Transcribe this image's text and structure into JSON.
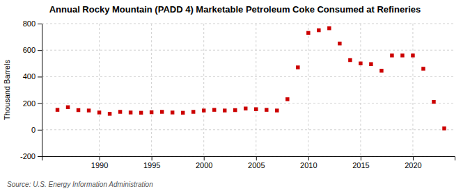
{
  "chart_data": {
    "type": "scatter",
    "title": "Annual Rocky Mountain (PADD 4) Marketable Petroleum Coke Consumed at Refineries",
    "ylabel": "Thousand Barrels",
    "source": "Source: U.S. Energy Information Administration",
    "x": [
      1986,
      1987,
      1988,
      1989,
      1990,
      1991,
      1992,
      1993,
      1994,
      1995,
      1996,
      1997,
      1998,
      1999,
      2000,
      2001,
      2002,
      2003,
      2004,
      2005,
      2006,
      2007,
      2008,
      2009,
      2010,
      2011,
      2012,
      2013,
      2014,
      2015,
      2016,
      2017,
      2018,
      2019,
      2020,
      2021,
      2022,
      2023
    ],
    "values": [
      150,
      170,
      148,
      145,
      130,
      120,
      135,
      130,
      128,
      132,
      135,
      130,
      128,
      135,
      145,
      150,
      145,
      148,
      160,
      155,
      150,
      145,
      230,
      470,
      730,
      750,
      765,
      650,
      525,
      500,
      495,
      445,
      560,
      560,
      560,
      460,
      210,
      10
    ],
    "color": "#cc0000",
    "marker": "square",
    "xlim": [
      1984.5,
      2024
    ],
    "ylim": [
      -200,
      800
    ],
    "yticks": [
      -200,
      0,
      200,
      400,
      600,
      800
    ],
    "xticks": [
      1990,
      1995,
      2000,
      2005,
      2010,
      2015,
      2020
    ],
    "grid": true
  }
}
